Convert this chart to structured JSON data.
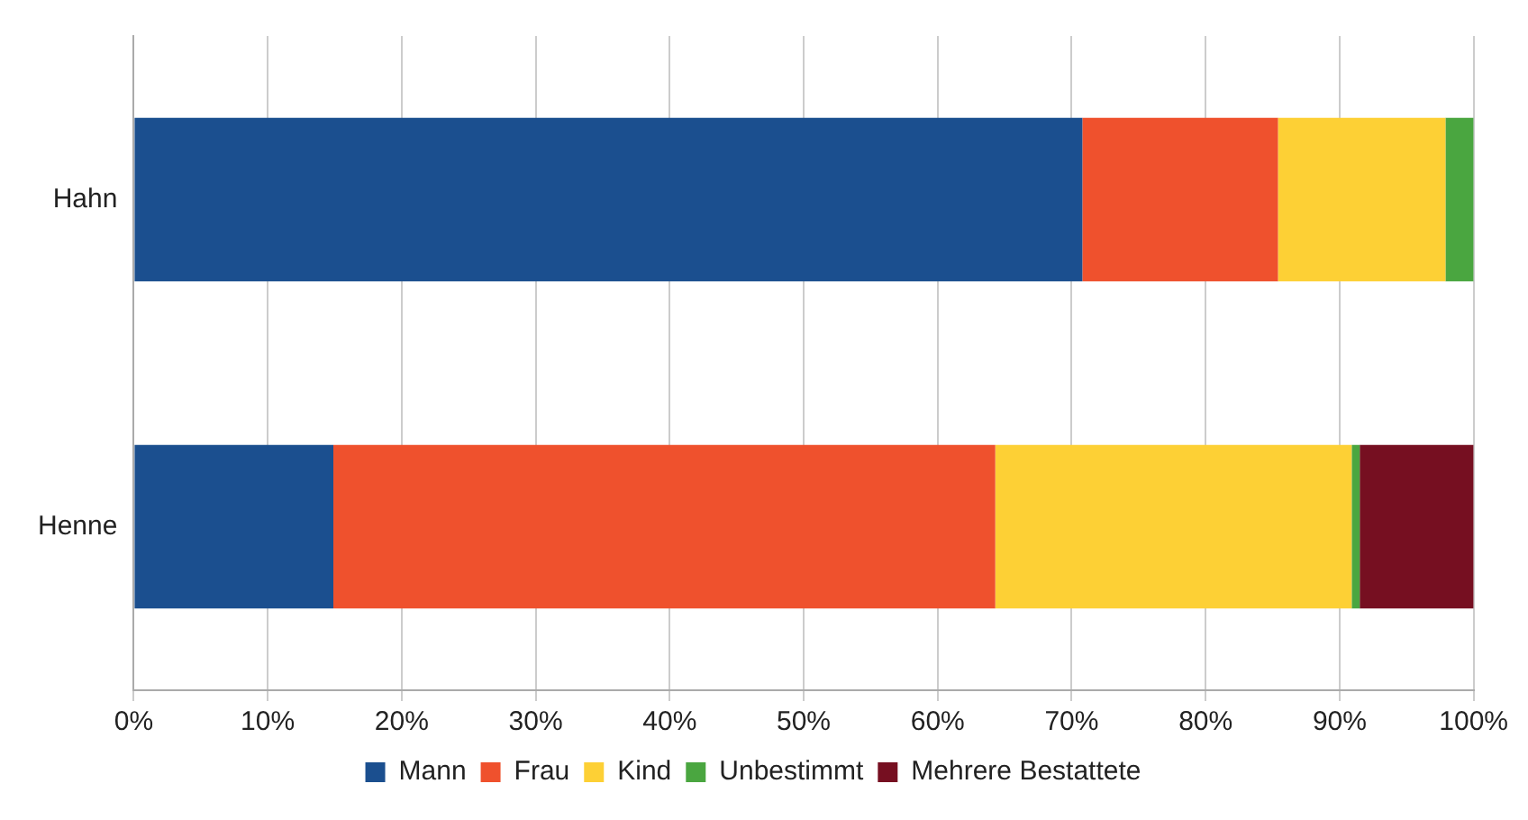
{
  "chart_data": {
    "type": "bar",
    "orientation": "horizontal",
    "stacked": true,
    "categories": [
      "Hahn",
      "Henne"
    ],
    "series": [
      {
        "name": "Mann",
        "color": "#1b4f8f",
        "values": [
          70.8,
          14.9
        ]
      },
      {
        "name": "Frau",
        "color": "#ef512d",
        "values": [
          14.6,
          49.4
        ]
      },
      {
        "name": "Kind",
        "color": "#fdd035",
        "values": [
          12.5,
          26.6
        ]
      },
      {
        "name": "Unbestimmt",
        "color": "#4aa640",
        "values": [
          2.1,
          0.6
        ]
      },
      {
        "name": "Mehrere Bestattete",
        "color": "#760f21",
        "values": [
          null,
          8.5
        ]
      }
    ],
    "xlim": [
      0,
      100
    ],
    "xticks": [
      {
        "value": 0,
        "label": "0%"
      },
      {
        "value": 10,
        "label": "10%"
      },
      {
        "value": 20,
        "label": "20%"
      },
      {
        "value": 30,
        "label": "30%"
      },
      {
        "value": 40,
        "label": "40%"
      },
      {
        "value": 50,
        "label": "50%"
      },
      {
        "value": 60,
        "label": "60%"
      },
      {
        "value": 70,
        "label": "70%"
      },
      {
        "value": 80,
        "label": "80%"
      },
      {
        "value": 90,
        "label": "90%"
      },
      {
        "value": 100,
        "label": "100%"
      }
    ],
    "grid": "x",
    "legend": "bottom"
  }
}
